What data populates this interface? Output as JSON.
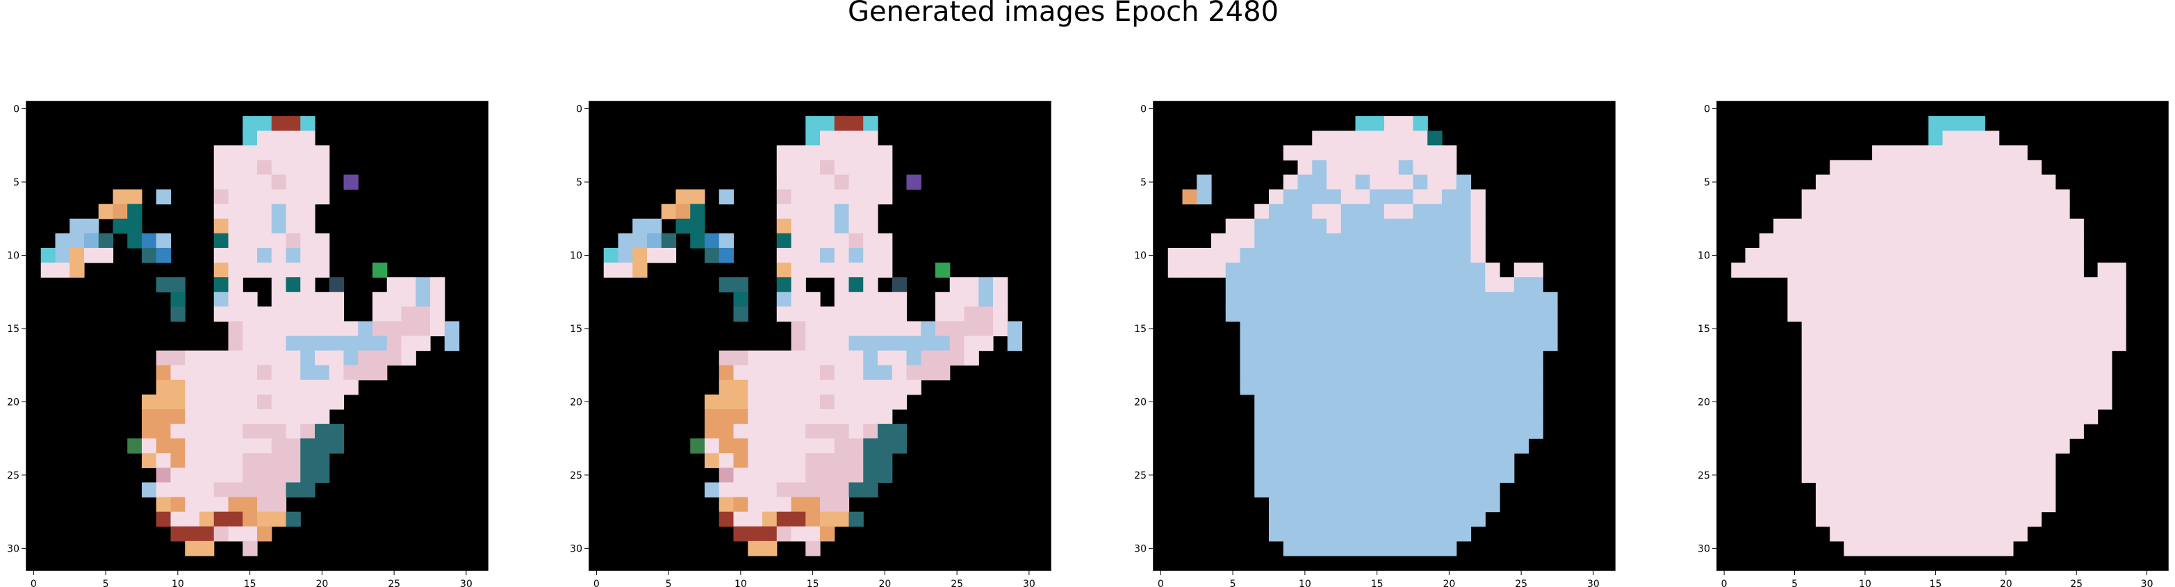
{
  "figure": {
    "title": "Generated images Epoch 2480"
  },
  "chart_data": [
    {
      "type": "heatmap",
      "title": "",
      "xlabel": "",
      "ylabel": "",
      "xlim": [
        -0.5,
        31.5
      ],
      "ylim": [
        31.5,
        -0.5
      ],
      "x_ticks": [
        0,
        5,
        10,
        15,
        20,
        25,
        30
      ],
      "y_ticks": [
        0,
        5,
        10,
        15,
        20,
        25,
        30
      ],
      "grid": false,
      "background_color": "#000000",
      "palette": [
        "#f4dde6",
        "#e8c4d0",
        "#d7a3b4",
        "#c58a9a",
        "#9fc6e4",
        "#7fb5dc",
        "#e7a06a",
        "#f0b57c",
        "#9a3b2e",
        "#5fcad8"
      ],
      "rows": [
        "................................",
        "...............JJIIJ............",
        "...............JAAAA............",
        ".............AAAAAAAA...........",
        ".............AAABAAAA...........",
        ".............AAAABAAA.T.........",
        "......HH.E...BAAAAAAA...........",
        ".....HGK.....AAAAEAA............",
        "...EE.KK.....HAAAEAA............",
        "..EEFQ.KPE...KAAAABAA...........",
        ".JEHAA..QP...AAAEAEAA...........",
        ".AAH.........HAAAAAAA...X.......",
        ".........QQ..KA..AKA.S...AAEA...",
        "..........K..EAA.AAAAA..AAAEA...",
        "..........Q..AAAAAAAAA..AABBA...",
        "..............BAAAAAAAAEBBBBAE..",
        "..............BAAAEEEEEEEBAA.E..",
        ".........BBAAAAAAAAEAAEBBBA.....",
        ".........GAAAAAABAAEEABBB.......",
        ".........HHAAAAAAAAAAAA.........",
        "........HHHAAAAABAAAAA..........",
        "........GGGAAAAAAAAAA...........",
        "........GGAAAAABBBABQQ..........",
        ".......RAGGAAAAAABBQQQ..........",
        "........HAGAAAABBBBQQ...........",
        ".........CAAAAABBBBQQ...........",
        "........EAAAABBBBBQQ............",
        ".........HGAAAGGBB..............",
        ".........IAAHIIGHHQ.............",
        "..........IIIBAAG...............",
        "...........HH..B................",
        "................................"
      ]
    },
    {
      "type": "heatmap",
      "title": "",
      "xlabel": "",
      "ylabel": "",
      "xlim": [
        -0.5,
        31.5
      ],
      "ylim": [
        31.5,
        -0.5
      ],
      "x_ticks": [
        0,
        5,
        10,
        15,
        20,
        25,
        30
      ],
      "y_ticks": [
        0,
        5,
        10,
        15,
        20,
        25,
        30
      ],
      "grid": false,
      "background_color": "#000000",
      "palette": [
        "#f4dde6",
        "#e8c4d0",
        "#d7a3b4",
        "#c58a9a",
        "#9fc6e4",
        "#7fb5dc",
        "#e7a06a",
        "#f0b57c",
        "#9a3b2e",
        "#5fcad8"
      ],
      "rows": [
        "................................",
        "...............JJIIJ............",
        "...............JAAAA............",
        ".............AAAAAAAA...........",
        ".............AAABAAAA...........",
        ".............AAAABAAA.T.........",
        "......HH.E...BAAAAAAA...........",
        ".....HGK.....AAAAEAA............",
        "...EE.KK.....HAAAEAA............",
        "..EEFQ.KPE...KAAAABAA...........",
        ".JEHAA..QP...AAAEAEAA...........",
        ".AAH.........HAAAAAAA...X.......",
        ".........QQ..KA..AKA.S...AAEA...",
        "..........K..EAA.AAAAA..AAAEA...",
        "..........Q..AAAAAAAAA..AABBA...",
        "..............BAAAAAAAAEBBBBAE..",
        "..............BAAAEEEEEEEBAA.E..",
        ".........BBAAAAAAAAEAAEBBBA.....",
        ".........GAAAAAABAAEEABBB.......",
        ".........HHAAAAAAAAAAAA.........",
        "........HHHAAAAABAAAAA..........",
        "........GGGAAAAAAAAAA...........",
        "........GGAAAAABBBABQQ..........",
        ".......RAGGAAAAAABBQQQ..........",
        "........HAGAAAABBBBQQ...........",
        ".........CAAAAABBBBQQ...........",
        "........EAAAABBBBBQQ............",
        ".........HGAAAGGBB..............",
        ".........IAAHIIGHHQ.............",
        "..........IIIBAAG...............",
        "...........HH..B................",
        "................................"
      ]
    },
    {
      "type": "heatmap",
      "title": "",
      "xlabel": "",
      "ylabel": "",
      "xlim": [
        -0.5,
        31.5
      ],
      "ylim": [
        31.5,
        -0.5
      ],
      "x_ticks": [
        0,
        5,
        10,
        15,
        20,
        25,
        30
      ],
      "y_ticks": [
        0,
        5,
        10,
        15,
        20,
        25,
        30
      ],
      "grid": false,
      "background_color": "#000000",
      "palette": [
        "#f4dde6",
        "#e8c4d0",
        "#d7a3b4",
        "#c58a9a",
        "#9fc6e4",
        "#7fb5dc",
        "#e7a06a",
        "#f0b57c",
        "#9a3b2e",
        "#5fcad8"
      ],
      "rows": [
        "................................",
        "..............JJAAJ.............",
        "...........AAAAAAAAK............",
        ".........AAAAAAAAAAAA...........",
        "..........AEAAAAAEAAA...........",
        "...E.....AEEAAEAAAEAAE..........",
        "..GE....AEEEEAAEEEAAEEA.........",
        ".......AEEEAAEEEAAEEEEA.........",
        ".....AAEEEEEAEEEEEEEEEA.........",
        "....AAAEEEEEEEEEEEEEEEA.........",
        ".AAAAAEEEEEEEEEEEEEEEEA.........",
        ".AAAAEEEEEEEEEEEEEEEEEEA.AA.....",
        ".....EEEEEEEEEEEEEEEEEEAAEE.....",
        ".....EEEEEEEEEEEEEEEEEEEEEEE....",
        ".....EEEEEEEEEEEEEEEEEEEEEEE....",
        "......EEEEEEEEEEEEEEEEEEEEEE....",
        "......EEEEEEEEEEEEEEEEEEEEEE....",
        "......EEEEEEEEEEEEEEEEEEEEE.....",
        "......EEEEEEEEEEEEEEEEEEEEE.....",
        "......EEEEEEEEEEEEEEEEEEEEE.....",
        ".......EEEEEEEEEEEEEEEEEEEE.....",
        ".......EEEEEEEEEEEEEEEEEEEE.....",
        ".......EEEEEEEEEEEEEEEEEEEE.....",
        ".......EEEEEEEEEEEEEEEEEEE......",
        ".......EEEEEEEEEEEEEEEEEE.......",
        ".......EEEEEEEEEEEEEEEEEE.......",
        ".......EEEEEEEEEEEEEEEEE........",
        "........EEEEEEEEEEEEEEEE........",
        "........EEEEEEEEEEEEEEE.........",
        "........EEEEEEEEEEEEEE..........",
        ".........EEEEEEEEEEEE...........",
        "................................"
      ]
    },
    {
      "type": "heatmap",
      "title": "",
      "xlabel": "",
      "ylabel": "",
      "xlim": [
        -0.5,
        31.5
      ],
      "ylim": [
        31.5,
        -0.5
      ],
      "x_ticks": [
        0,
        5,
        10,
        15,
        20,
        25,
        30
      ],
      "y_ticks": [
        0,
        5,
        10,
        15,
        20,
        25,
        30
      ],
      "grid": false,
      "background_color": "#000000",
      "palette": [
        "#f4dde6",
        "#e8c4d0",
        "#d7a3b4",
        "#c58a9a",
        "#9fc6e4",
        "#7fb5dc",
        "#e7a06a",
        "#f0b57c",
        "#9a3b2e",
        "#5fcad8"
      ],
      "rows": [
        "................................",
        "...............JJJJ.............",
        "...............JAAAA............",
        "...........AAAAAAAAAAA..........",
        "........AAAAAAAAAAAAAAA.........",
        ".......AAAAAAAAAAAAAAAAA........",
        "......AAAAAAAAAAAAAAAAAAA.......",
        "......AAAAAAAAAAAAAAAAAAA.......",
        "....AAAAAAAAAAAAAAAAAAAAAA......",
        "...AAAAAAAAAAAAAAAAAAAAAAA......",
        "..AAAAAAAAAAAAAAAAAAAAAAAA......",
        ".AAAAAAAAAAAAAAAAAAAAAAAAA.AA...",
        ".....AAAAAAAAAAAAAAAAAAAAAAAA...",
        ".....AAAAAAAAAAAAAAAAAAAAAAAA...",
        ".....AAAAAAAAAAAAAAAAAAAAAAAA...",
        "......AAAAAAAAAAAAAAAAAAAAAAA...",
        "......AAAAAAAAAAAAAAAAAAAAAAA...",
        "......AAAAAAAAAAAAAAAAAAAAAA....",
        "......AAAAAAAAAAAAAAAAAAAAAA....",
        "......AAAAAAAAAAAAAAAAAAAAAA....",
        "......AAAAAAAAAAAAAAAAAAAAAA....",
        "......AAAAAAAAAAAAAAAAAAAAA.....",
        "......AAAAAAAAAAAAAAAAAAAA......",
        "......AAAAAAAAAAAAAAAAAAA.......",
        "......AAAAAAAAAAAAAAAAAA........",
        "......AAAAAAAAAAAAAAAAAA........",
        ".......AAAAAAAAAAAAAAAAA........",
        ".......AAAAAAAAAAAAAAAAA........",
        ".......AAAAAAAAAAAAAAAA.........",
        "........AAAAAAAAAAAAAA..........",
        ".........AAAAAAAAAAAA...........",
        "................................"
      ]
    }
  ]
}
